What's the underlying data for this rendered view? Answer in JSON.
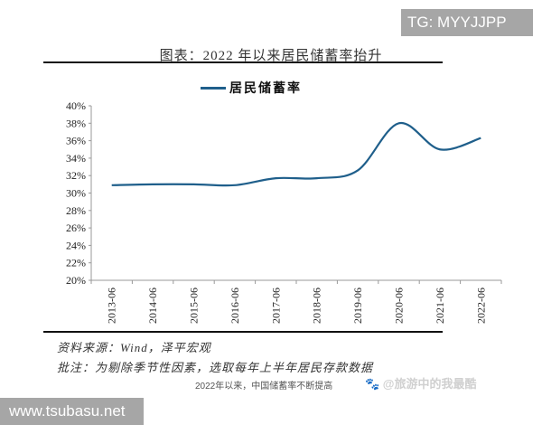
{
  "watermarks": {
    "tg": "TG: MYYJJPP",
    "site": "www.tsubasu.net",
    "weibo": "🐾 @旅游中的我最酷",
    "caption": "2022年以来，中国储蓄率不断提高"
  },
  "header": {
    "title": "图表：2022 年以来居民储蓄率抬升"
  },
  "footer": {
    "source": "资料来源：Wind，泽平宏观",
    "note": "批注：为剔除季节性因素，选取每年上半年居民存款数据"
  },
  "colors": {
    "series": "#1f5f8b",
    "axis": "#999999"
  },
  "chart_data": {
    "type": "line",
    "title": "图表：2022 年以来居民储蓄率抬升",
    "xlabel": "",
    "ylabel": "",
    "categories": [
      "2013-06",
      "2014-06",
      "2015-06",
      "2016-06",
      "2017-06",
      "2018-06",
      "2019-06",
      "2020-06",
      "2021-06",
      "2022-06"
    ],
    "series": [
      {
        "name": "居民储蓄率",
        "values": [
          30.9,
          31.0,
          31.0,
          30.9,
          31.7,
          31.7,
          32.6,
          38.0,
          35.0,
          36.3
        ]
      }
    ],
    "yticks": [
      "20%",
      "22%",
      "24%",
      "26%",
      "28%",
      "30%",
      "32%",
      "34%",
      "36%",
      "38%",
      "40%"
    ],
    "ylim": [
      20,
      40
    ],
    "grid": false,
    "legend_position": "top-center",
    "smooth": true
  }
}
